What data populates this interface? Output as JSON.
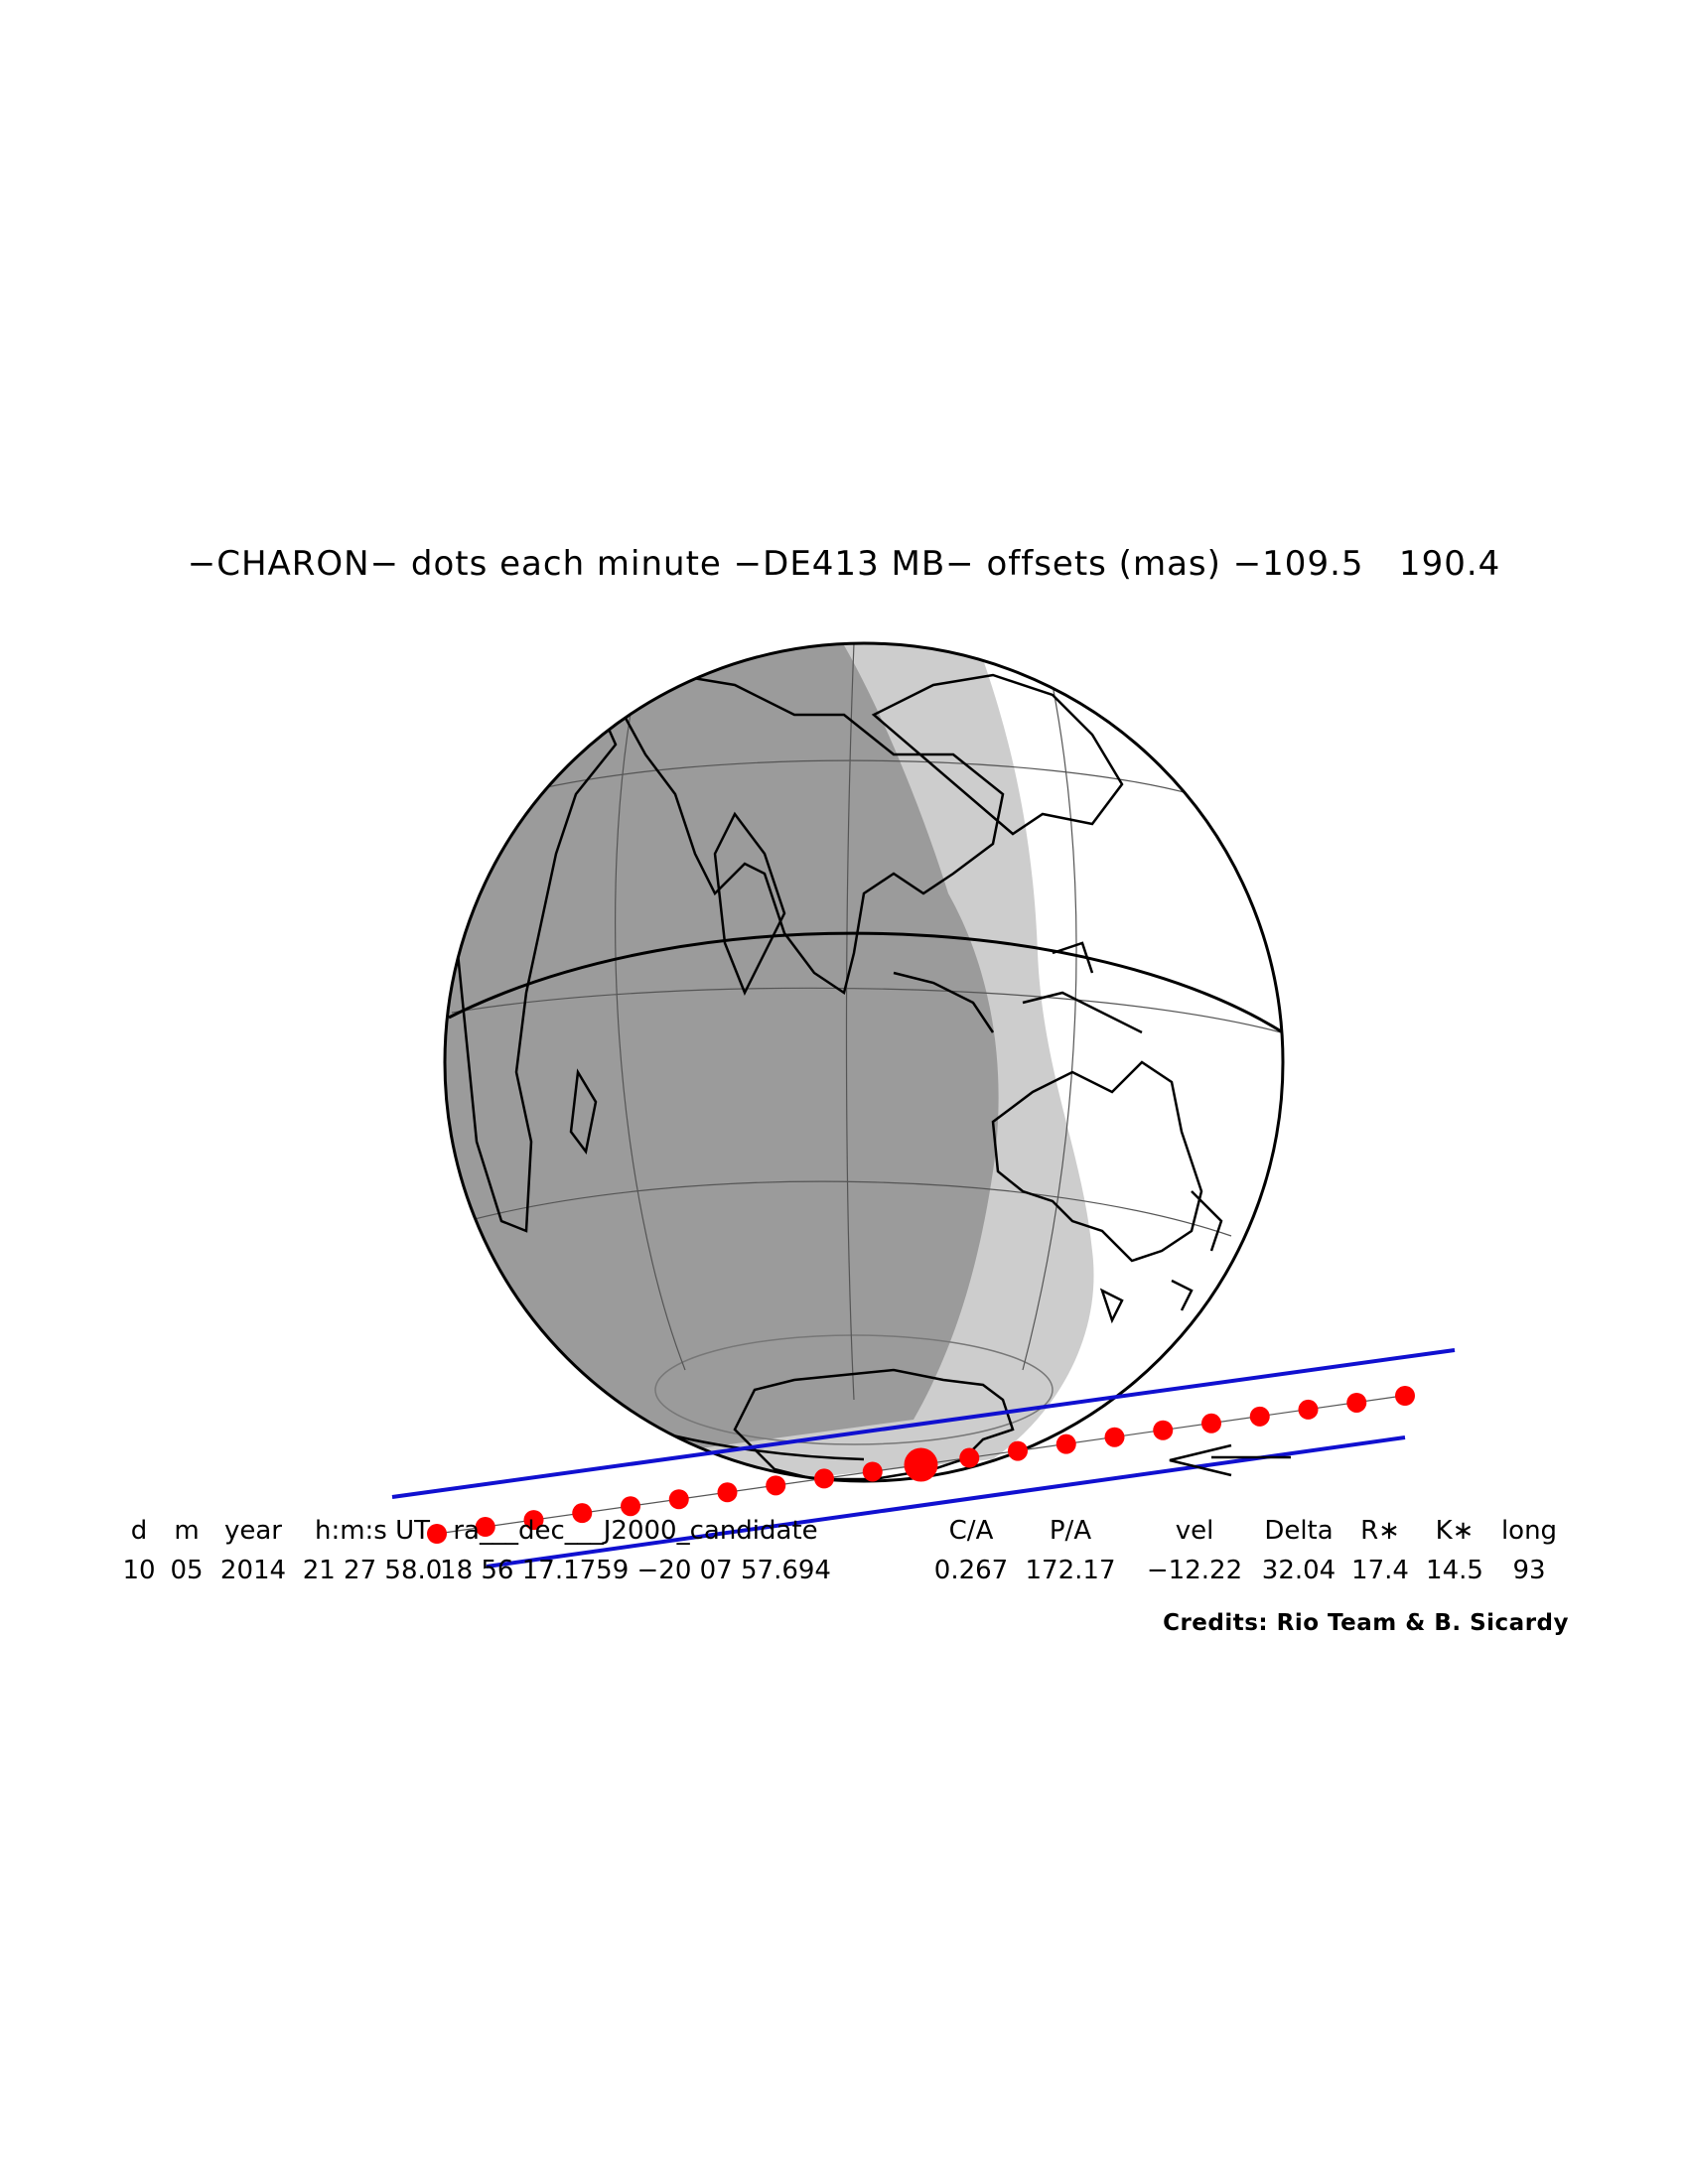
{
  "title": "−CHARON− dots each minute −DE413 MB− offsets (mas) −109.5   190.4",
  "table": {
    "headers": [
      "d",
      "m",
      "year",
      "h:m:s UT",
      "ra___dec___J2000_candidate",
      "C/A",
      "P/A",
      "vel",
      "Delta",
      "R∗",
      "K∗",
      "long"
    ],
    "values": [
      "10",
      "05",
      "2014",
      "21 27 58.0",
      "18 56 17.1759 −20 07 57.694",
      "0.267",
      "172.17",
      "−12.22",
      "32.04",
      "17.4",
      "14.5",
      "93"
    ]
  },
  "credits": "Credits: Rio Team & B. Sicardy",
  "colors": {
    "night": "#9b9b9b",
    "twilight": "#cdcdcd",
    "day": "#ffffff",
    "limit_lines": "#1010d0",
    "dots": "#ff0000"
  },
  "path": {
    "dots_count": 21,
    "central_dot_index": 10,
    "direction": "arrow pointing left"
  }
}
